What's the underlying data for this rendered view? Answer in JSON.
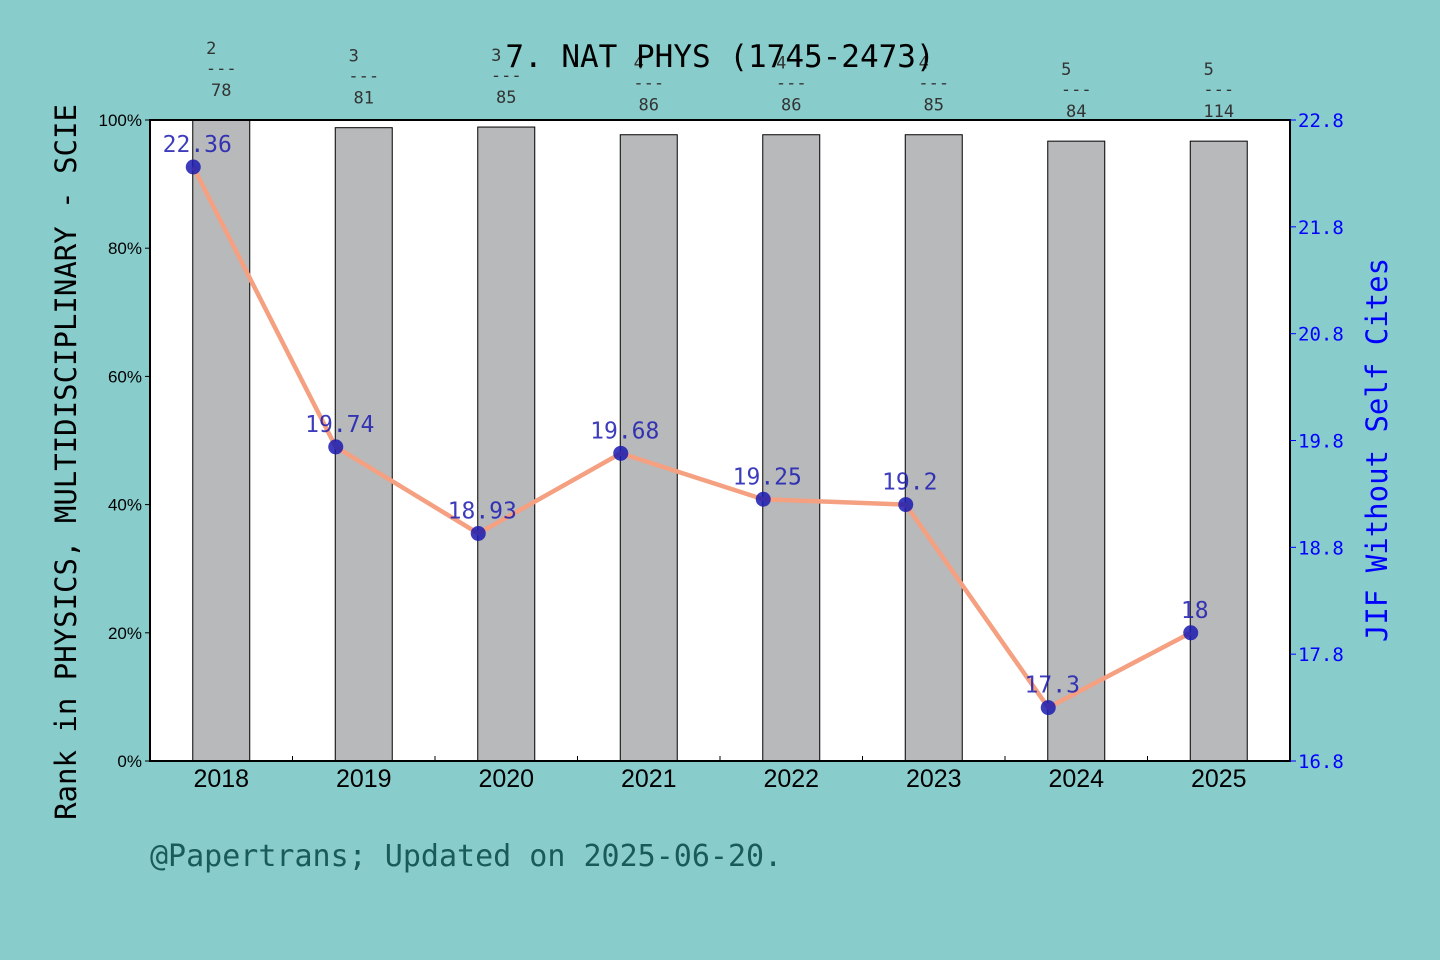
{
  "chart_data": {
    "type": "bar",
    "title": "7. NAT PHYS (1745-2473)",
    "ylabel": "Rank in PHYSICS, MULTIDISCIPLINARY - SCIE",
    "y2label": "JIF Without Self Cites",
    "categories": [
      "2018",
      "2019",
      "2020",
      "2021",
      "2022",
      "2023",
      "2024",
      "2025"
    ],
    "ylim": [
      0,
      100
    ],
    "yticks": [
      "0%",
      "20%",
      "40%",
      "60%",
      "80%",
      "100%"
    ],
    "y2lim": [
      16.8,
      22.8
    ],
    "y2ticks": [
      "16.8",
      "17.8",
      "18.8",
      "19.8",
      "20.8",
      "21.8",
      "22.8"
    ],
    "rank_labels": [
      {
        "rank": "2",
        "total": "78"
      },
      {
        "rank": "3",
        "total": "81"
      },
      {
        "rank": "3",
        "total": "85"
      },
      {
        "rank": "4",
        "total": "86"
      },
      {
        "rank": "4",
        "total": "86"
      },
      {
        "rank": "4",
        "total": "85"
      },
      {
        "rank": "5",
        "total": "84"
      },
      {
        "rank": "5",
        "total": "114"
      }
    ],
    "series": [
      {
        "kind": "bar",
        "values": [
          100,
          98.8,
          98.9,
          97.7,
          97.7,
          97.7,
          96.7,
          96.7
        ]
      },
      {
        "kind": "line",
        "values": [
          22.36,
          19.74,
          18.93,
          19.68,
          19.25,
          19.2,
          17.3,
          18
        ],
        "labels": [
          "22.36",
          "19.74",
          "18.93",
          "19.68",
          "19.25",
          "19.2",
          "17.3",
          "18"
        ]
      }
    ],
    "colors": {
      "background": "#88cccc",
      "plot_bg": "#ffffff",
      "bar": "#b8b9bb",
      "line": "#f4a081",
      "marker": "#1a1ab0",
      "right_axis": "#0000ff",
      "footer": "#1a5a5a"
    }
  },
  "footer": "@Papertrans; Updated on 2025-06-20."
}
